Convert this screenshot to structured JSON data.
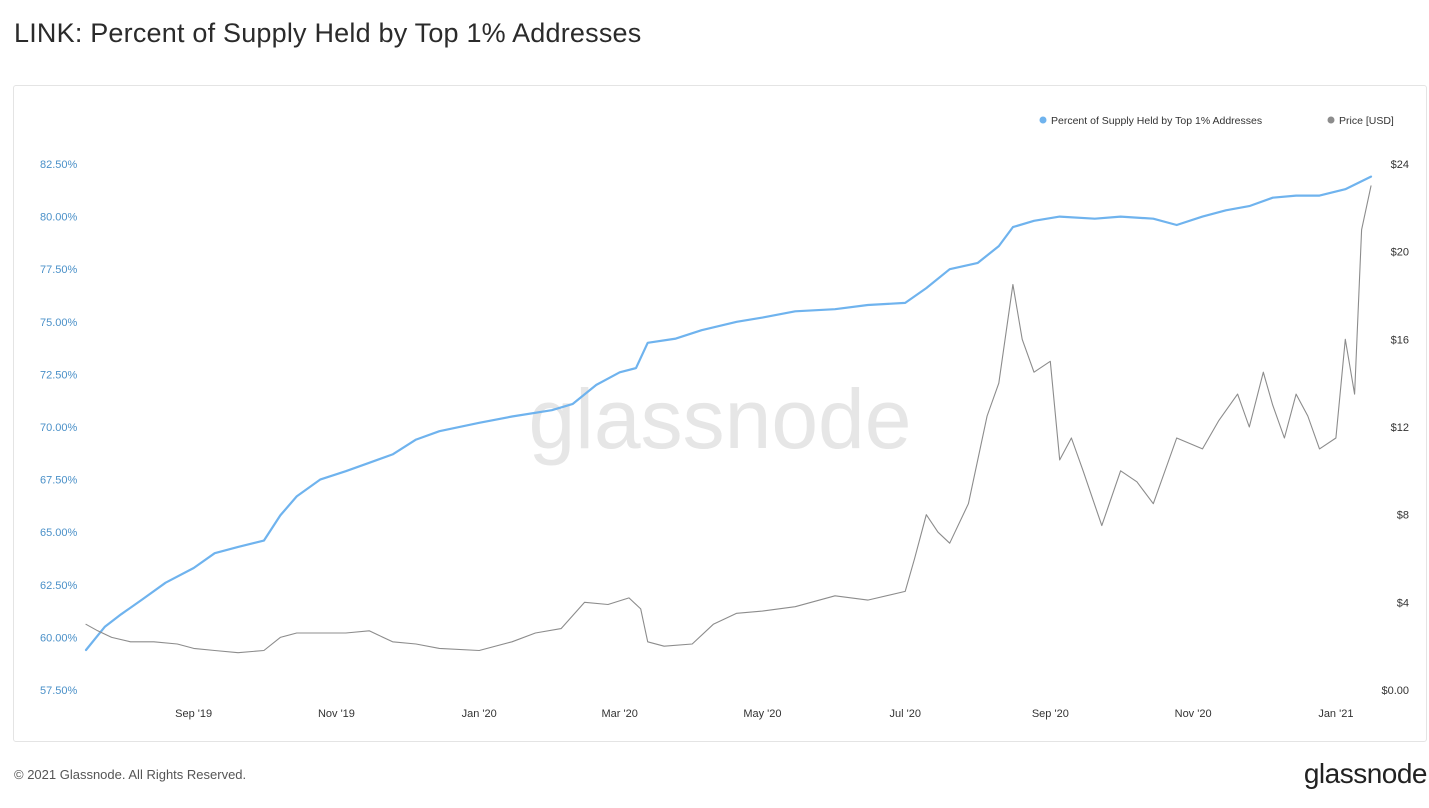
{
  "title": "LINK: Percent of Supply Held by Top 1% Addresses",
  "watermark": "glassnode",
  "footer": {
    "copyright": "© 2021 Glassnode. All Rights Reserved.",
    "logo": "glassnode"
  },
  "colors": {
    "supply_series": "#6fb3ee",
    "price_series": "#8c8c8c",
    "left_axis_text": "#4a90c8"
  },
  "chart_data": {
    "type": "line",
    "title": "LINK: Percent of Supply Held by Top 1% Addresses",
    "x_range": [
      "2019-07-17",
      "2021-01-16"
    ],
    "x_ticks": [
      {
        "date": "2019-09-01",
        "label": "Sep '19"
      },
      {
        "date": "2019-11-01",
        "label": "Nov '19"
      },
      {
        "date": "2020-01-01",
        "label": "Jan '20"
      },
      {
        "date": "2020-03-01",
        "label": "Mar '20"
      },
      {
        "date": "2020-05-01",
        "label": "May '20"
      },
      {
        "date": "2020-07-01",
        "label": "Jul '20"
      },
      {
        "date": "2020-09-01",
        "label": "Sep '20"
      },
      {
        "date": "2020-11-01",
        "label": "Nov '20"
      },
      {
        "date": "2021-01-01",
        "label": "Jan '21"
      }
    ],
    "y_left": {
      "ylim": [
        57.5,
        82.5
      ],
      "ticks": [
        57.5,
        60,
        62.5,
        65,
        67.5,
        70,
        72.5,
        75,
        77.5,
        80,
        82.5
      ],
      "tick_labels": [
        "57.50%",
        "60.00%",
        "62.50%",
        "65.00%",
        "67.50%",
        "70.00%",
        "72.50%",
        "75.00%",
        "77.50%",
        "80.00%",
        "82.50%"
      ]
    },
    "y_right": {
      "ylim": [
        0,
        24
      ],
      "ticks": [
        0,
        4,
        8,
        12,
        16,
        20,
        24
      ],
      "tick_labels": [
        "$0.00",
        "$4",
        "$8",
        "$12",
        "$16",
        "$20",
        "$24"
      ]
    },
    "legend": {
      "position": "top-right",
      "entries": [
        "Percent of Supply Held by Top 1% Addresses",
        "Price [USD]"
      ]
    },
    "grid": false,
    "series": [
      {
        "name": "Percent of Supply Held by Top 1% Addresses",
        "axis": "left",
        "points": [
          [
            "2019-07-17",
            59.4
          ],
          [
            "2019-07-25",
            60.5
          ],
          [
            "2019-08-01",
            61.1
          ],
          [
            "2019-08-10",
            61.8
          ],
          [
            "2019-08-20",
            62.6
          ],
          [
            "2019-09-01",
            63.3
          ],
          [
            "2019-09-10",
            64.0
          ],
          [
            "2019-09-20",
            64.3
          ],
          [
            "2019-10-01",
            64.6
          ],
          [
            "2019-10-08",
            65.8
          ],
          [
            "2019-10-15",
            66.7
          ],
          [
            "2019-10-25",
            67.5
          ],
          [
            "2019-11-05",
            67.9
          ],
          [
            "2019-11-15",
            68.3
          ],
          [
            "2019-11-25",
            68.7
          ],
          [
            "2019-12-05",
            69.4
          ],
          [
            "2019-12-15",
            69.8
          ],
          [
            "2020-01-01",
            70.2
          ],
          [
            "2020-01-15",
            70.5
          ],
          [
            "2020-02-01",
            70.8
          ],
          [
            "2020-02-10",
            71.1
          ],
          [
            "2020-02-20",
            72.0
          ],
          [
            "2020-03-01",
            72.6
          ],
          [
            "2020-03-08",
            72.8
          ],
          [
            "2020-03-13",
            74.0
          ],
          [
            "2020-03-25",
            74.2
          ],
          [
            "2020-04-05",
            74.6
          ],
          [
            "2020-04-20",
            75.0
          ],
          [
            "2020-05-01",
            75.2
          ],
          [
            "2020-05-15",
            75.5
          ],
          [
            "2020-06-01",
            75.6
          ],
          [
            "2020-06-15",
            75.8
          ],
          [
            "2020-07-01",
            75.9
          ],
          [
            "2020-07-10",
            76.6
          ],
          [
            "2020-07-20",
            77.5
          ],
          [
            "2020-08-01",
            77.8
          ],
          [
            "2020-08-10",
            78.6
          ],
          [
            "2020-08-16",
            79.5
          ],
          [
            "2020-08-25",
            79.8
          ],
          [
            "2020-09-05",
            80.0
          ],
          [
            "2020-09-20",
            79.9
          ],
          [
            "2020-10-01",
            80.0
          ],
          [
            "2020-10-15",
            79.9
          ],
          [
            "2020-10-25",
            79.6
          ],
          [
            "2020-11-05",
            80.0
          ],
          [
            "2020-11-15",
            80.3
          ],
          [
            "2020-11-25",
            80.5
          ],
          [
            "2020-12-05",
            80.9
          ],
          [
            "2020-12-15",
            81.0
          ],
          [
            "2020-12-25",
            81.0
          ],
          [
            "2021-01-05",
            81.3
          ],
          [
            "2021-01-16",
            81.9
          ]
        ]
      },
      {
        "name": "Price [USD]",
        "axis": "right",
        "points": [
          [
            "2019-07-17",
            3.0
          ],
          [
            "2019-07-22",
            2.7
          ],
          [
            "2019-07-28",
            2.4
          ],
          [
            "2019-08-05",
            2.2
          ],
          [
            "2019-08-15",
            2.2
          ],
          [
            "2019-08-25",
            2.1
          ],
          [
            "2019-09-01",
            1.9
          ],
          [
            "2019-09-10",
            1.8
          ],
          [
            "2019-09-20",
            1.7
          ],
          [
            "2019-10-01",
            1.8
          ],
          [
            "2019-10-08",
            2.4
          ],
          [
            "2019-10-15",
            2.6
          ],
          [
            "2019-10-25",
            2.6
          ],
          [
            "2019-11-05",
            2.6
          ],
          [
            "2019-11-15",
            2.7
          ],
          [
            "2019-11-25",
            2.2
          ],
          [
            "2019-12-05",
            2.1
          ],
          [
            "2019-12-15",
            1.9
          ],
          [
            "2020-01-01",
            1.8
          ],
          [
            "2020-01-15",
            2.2
          ],
          [
            "2020-01-25",
            2.6
          ],
          [
            "2020-02-05",
            2.8
          ],
          [
            "2020-02-15",
            4.0
          ],
          [
            "2020-02-25",
            3.9
          ],
          [
            "2020-03-05",
            4.2
          ],
          [
            "2020-03-10",
            3.7
          ],
          [
            "2020-03-13",
            2.2
          ],
          [
            "2020-03-20",
            2.0
          ],
          [
            "2020-04-01",
            2.1
          ],
          [
            "2020-04-10",
            3.0
          ],
          [
            "2020-04-20",
            3.5
          ],
          [
            "2020-05-01",
            3.6
          ],
          [
            "2020-05-15",
            3.8
          ],
          [
            "2020-06-01",
            4.3
          ],
          [
            "2020-06-15",
            4.1
          ],
          [
            "2020-07-01",
            4.5
          ],
          [
            "2020-07-05",
            6.0
          ],
          [
            "2020-07-10",
            8.0
          ],
          [
            "2020-07-15",
            7.2
          ],
          [
            "2020-07-20",
            6.7
          ],
          [
            "2020-07-28",
            8.5
          ],
          [
            "2020-08-05",
            12.5
          ],
          [
            "2020-08-10",
            14.0
          ],
          [
            "2020-08-16",
            18.5
          ],
          [
            "2020-08-20",
            16.0
          ],
          [
            "2020-08-25",
            14.5
          ],
          [
            "2020-09-01",
            15.0
          ],
          [
            "2020-09-05",
            10.5
          ],
          [
            "2020-09-10",
            11.5
          ],
          [
            "2020-09-15",
            10.0
          ],
          [
            "2020-09-23",
            7.5
          ],
          [
            "2020-10-01",
            10.0
          ],
          [
            "2020-10-08",
            9.5
          ],
          [
            "2020-10-15",
            8.5
          ],
          [
            "2020-10-25",
            11.5
          ],
          [
            "2020-11-05",
            11.0
          ],
          [
            "2020-11-12",
            12.3
          ],
          [
            "2020-11-20",
            13.5
          ],
          [
            "2020-11-25",
            12.0
          ],
          [
            "2020-12-01",
            14.5
          ],
          [
            "2020-12-05",
            13.0
          ],
          [
            "2020-12-10",
            11.5
          ],
          [
            "2020-12-15",
            13.5
          ],
          [
            "2020-12-20",
            12.5
          ],
          [
            "2020-12-25",
            11.0
          ],
          [
            "2021-01-01",
            11.5
          ],
          [
            "2021-01-05",
            16.0
          ],
          [
            "2021-01-09",
            13.5
          ],
          [
            "2021-01-12",
            21.0
          ],
          [
            "2021-01-16",
            23.0
          ]
        ]
      }
    ]
  }
}
